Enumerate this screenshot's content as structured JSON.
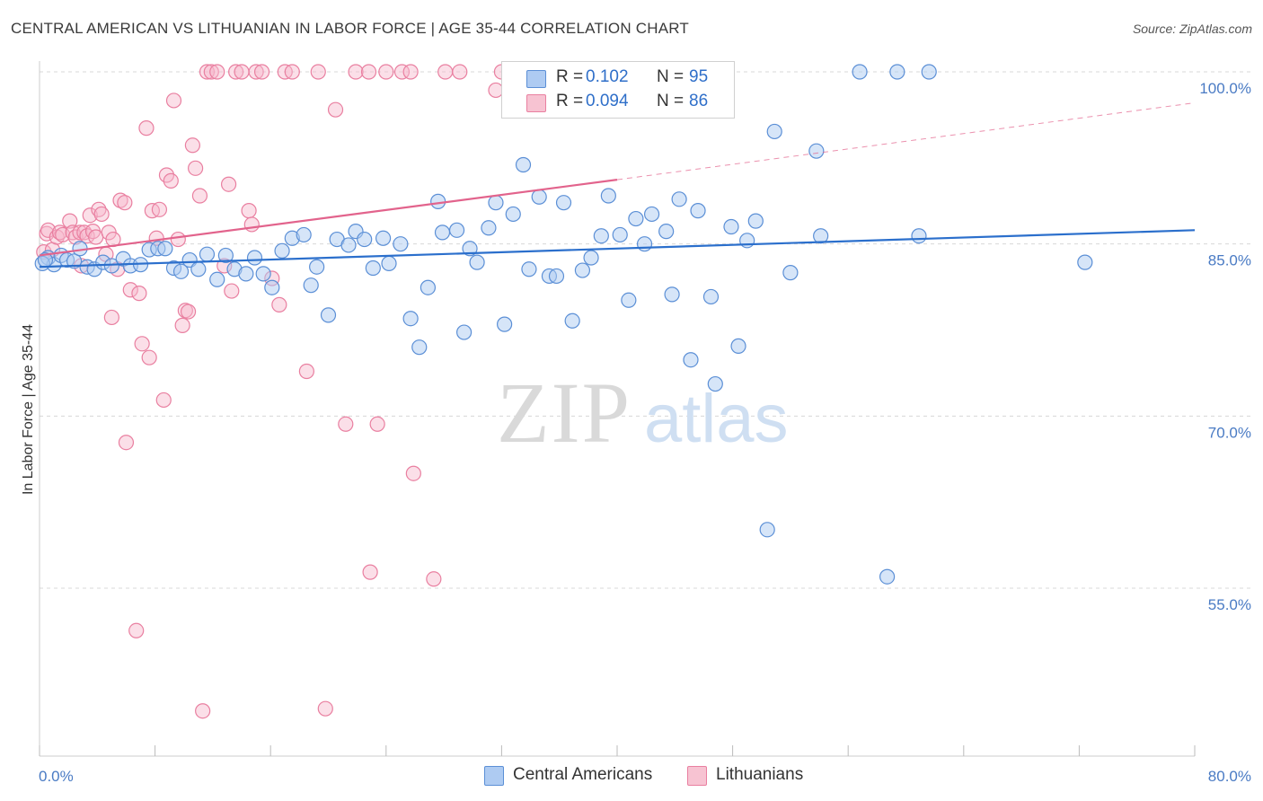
{
  "header": {
    "title": "CENTRAL AMERICAN VS LITHUANIAN IN LABOR FORCE | AGE 35-44 CORRELATION CHART",
    "source": "Source: ZipAtlas.com"
  },
  "watermark": {
    "zip": "ZIP",
    "atlas": "atlas"
  },
  "legend": {
    "rows": [
      {
        "r_label": "R =",
        "r_value": "0.102",
        "n_label": "N =",
        "n_value": "95"
      },
      {
        "r_label": "R =",
        "r_value": "0.094",
        "n_label": "N =",
        "n_value": "86"
      }
    ]
  },
  "bottom_legend": {
    "central": "Central Americans",
    "lithuanian": "Lithuanians"
  },
  "colors": {
    "blue_fill": "#aecbf2",
    "blue_stroke": "#5b8fd6",
    "blue_line": "#2b6fcc",
    "pink_fill": "#f7b8cb",
    "pink_stroke": "#e97fa0",
    "pink_line": "#e2638c",
    "tick_text": "#4a7bc4",
    "grid": "#d8d8d8"
  },
  "chart_data": {
    "type": "scatter",
    "ylabel": "In Labor Force | Age 35-44",
    "x_tick_labels": [
      "0.0%",
      "80.0%"
    ],
    "y_tick_labels": [
      "100.0%",
      "85.0%",
      "70.0%",
      "55.0%"
    ],
    "y_ticks": [
      100,
      85,
      70,
      55
    ],
    "xlim": [
      0,
      80
    ],
    "ylim": [
      40,
      101
    ],
    "grid": true,
    "series": [
      {
        "name": "Central Americans",
        "trend": {
          "x0": 0,
          "y0": 83.0,
          "x1": 80,
          "y1": 86.2
        },
        "points": [
          [
            0.6,
            83.8
          ],
          [
            1.0,
            83.2
          ],
          [
            1.5,
            84.0
          ],
          [
            1.9,
            83.6
          ],
          [
            2.4,
            83.5
          ],
          [
            2.8,
            84.6
          ],
          [
            3.3,
            83.0
          ],
          [
            3.8,
            82.8
          ],
          [
            4.4,
            83.4
          ],
          [
            5.0,
            83.1
          ],
          [
            5.8,
            83.7
          ],
          [
            6.3,
            83.1
          ],
          [
            7.0,
            83.2
          ],
          [
            7.6,
            84.5
          ],
          [
            8.2,
            84.6
          ],
          [
            8.7,
            84.6
          ],
          [
            9.3,
            82.9
          ],
          [
            9.8,
            82.6
          ],
          [
            10.4,
            83.6
          ],
          [
            11.0,
            82.8
          ],
          [
            11.6,
            84.1
          ],
          [
            12.3,
            81.9
          ],
          [
            12.9,
            84.0
          ],
          [
            13.5,
            82.8
          ],
          [
            14.3,
            82.4
          ],
          [
            14.9,
            83.8
          ],
          [
            15.5,
            82.4
          ],
          [
            16.1,
            81.2
          ],
          [
            16.8,
            84.4
          ],
          [
            17.5,
            85.5
          ],
          [
            18.3,
            85.8
          ],
          [
            18.8,
            81.4
          ],
          [
            19.2,
            83.0
          ],
          [
            20.0,
            78.8
          ],
          [
            20.6,
            85.4
          ],
          [
            21.4,
            84.9
          ],
          [
            21.9,
            86.1
          ],
          [
            22.5,
            85.4
          ],
          [
            23.1,
            82.9
          ],
          [
            23.8,
            85.5
          ],
          [
            24.2,
            83.3
          ],
          [
            25.0,
            85.0
          ],
          [
            25.7,
            78.5
          ],
          [
            26.3,
            76.0
          ],
          [
            26.9,
            81.2
          ],
          [
            27.6,
            88.7
          ],
          [
            27.9,
            86.0
          ],
          [
            28.9,
            86.2
          ],
          [
            29.4,
            77.3
          ],
          [
            29.8,
            84.6
          ],
          [
            30.3,
            83.4
          ],
          [
            31.1,
            86.4
          ],
          [
            31.6,
            88.6
          ],
          [
            32.2,
            78.0
          ],
          [
            32.8,
            87.6
          ],
          [
            33.5,
            91.9
          ],
          [
            33.9,
            82.8
          ],
          [
            34.6,
            89.1
          ],
          [
            35.3,
            82.2
          ],
          [
            35.8,
            82.2
          ],
          [
            36.3,
            88.6
          ],
          [
            36.9,
            78.3
          ],
          [
            37.6,
            82.7
          ],
          [
            38.2,
            83.8
          ],
          [
            38.9,
            85.7
          ],
          [
            39.4,
            89.2
          ],
          [
            40.2,
            85.8
          ],
          [
            40.8,
            80.1
          ],
          [
            41.3,
            87.2
          ],
          [
            41.9,
            85.0
          ],
          [
            42.4,
            87.6
          ],
          [
            43.4,
            86.1
          ],
          [
            43.8,
            80.6
          ],
          [
            44.3,
            88.9
          ],
          [
            45.1,
            74.9
          ],
          [
            45.6,
            87.9
          ],
          [
            46.5,
            80.4
          ],
          [
            46.8,
            72.8
          ],
          [
            47.9,
            86.5
          ],
          [
            48.4,
            76.1
          ],
          [
            49.0,
            85.3
          ],
          [
            49.6,
            87.0
          ],
          [
            50.4,
            60.1
          ],
          [
            50.9,
            94.8
          ],
          [
            52.0,
            82.5
          ],
          [
            53.8,
            93.1
          ],
          [
            54.1,
            85.7
          ],
          [
            56.8,
            100.0
          ],
          [
            58.7,
            56.0
          ],
          [
            59.4,
            100.0
          ],
          [
            60.9,
            85.7
          ],
          [
            61.6,
            100.0
          ],
          [
            72.4,
            83.4
          ],
          [
            0.2,
            83.3
          ],
          [
            0.4,
            83.6
          ]
        ]
      },
      {
        "name": "Lithuanians",
        "trend": {
          "x0": 0,
          "y0": 84.0,
          "x1": 40,
          "y1": 90.6,
          "dash_x1": 80,
          "dash_y1": 97.3
        },
        "points": [
          [
            0.3,
            84.3
          ],
          [
            0.5,
            85.9
          ],
          [
            0.6,
            86.2
          ],
          [
            0.9,
            84.5
          ],
          [
            1.2,
            85.6
          ],
          [
            1.4,
            86.0
          ],
          [
            1.6,
            85.8
          ],
          [
            2.1,
            87.0
          ],
          [
            2.3,
            86.0
          ],
          [
            2.5,
            85.6
          ],
          [
            2.8,
            86.0
          ],
          [
            3.1,
            86.0
          ],
          [
            3.3,
            85.7
          ],
          [
            3.5,
            87.5
          ],
          [
            3.7,
            86.1
          ],
          [
            3.9,
            85.6
          ],
          [
            4.1,
            88.0
          ],
          [
            4.3,
            87.6
          ],
          [
            4.6,
            84.1
          ],
          [
            4.8,
            86.0
          ],
          [
            5.0,
            78.6
          ],
          [
            5.1,
            85.4
          ],
          [
            5.4,
            82.8
          ],
          [
            5.6,
            88.8
          ],
          [
            5.9,
            88.6
          ],
          [
            6.0,
            67.7
          ],
          [
            6.3,
            81.0
          ],
          [
            6.7,
            51.3
          ],
          [
            6.9,
            80.7
          ],
          [
            7.1,
            76.3
          ],
          [
            7.4,
            95.1
          ],
          [
            7.6,
            75.1
          ],
          [
            7.8,
            87.9
          ],
          [
            8.1,
            85.5
          ],
          [
            8.3,
            88.0
          ],
          [
            8.6,
            71.4
          ],
          [
            8.8,
            91.0
          ],
          [
            9.1,
            90.5
          ],
          [
            9.3,
            97.5
          ],
          [
            9.6,
            85.4
          ],
          [
            9.9,
            77.9
          ],
          [
            10.1,
            79.2
          ],
          [
            10.3,
            79.1
          ],
          [
            10.6,
            93.6
          ],
          [
            10.8,
            91.6
          ],
          [
            11.1,
            89.2
          ],
          [
            11.3,
            44.3
          ],
          [
            11.6,
            100.0
          ],
          [
            11.9,
            100.0
          ],
          [
            12.3,
            100.0
          ],
          [
            12.8,
            83.1
          ],
          [
            13.1,
            90.2
          ],
          [
            13.3,
            80.9
          ],
          [
            13.6,
            100.0
          ],
          [
            14.0,
            100.0
          ],
          [
            14.5,
            87.9
          ],
          [
            14.7,
            86.7
          ],
          [
            15.0,
            100.0
          ],
          [
            15.4,
            100.0
          ],
          [
            16.1,
            82.0
          ],
          [
            16.6,
            79.7
          ],
          [
            17.0,
            100.0
          ],
          [
            17.5,
            100.0
          ],
          [
            18.5,
            73.9
          ],
          [
            19.3,
            100.0
          ],
          [
            19.8,
            44.5
          ],
          [
            20.5,
            96.7
          ],
          [
            21.2,
            69.3
          ],
          [
            21.9,
            100.0
          ],
          [
            22.8,
            100.0
          ],
          [
            22.9,
            56.4
          ],
          [
            23.4,
            69.3
          ],
          [
            24.0,
            100.0
          ],
          [
            25.1,
            100.0
          ],
          [
            25.9,
            65.0
          ],
          [
            25.7,
            100.0
          ],
          [
            27.3,
            55.8
          ],
          [
            28.1,
            100.0
          ],
          [
            29.1,
            100.0
          ],
          [
            31.6,
            98.4
          ],
          [
            32.0,
            100.0
          ],
          [
            34.6,
            100.0
          ],
          [
            35.4,
            100.0
          ],
          [
            36.0,
            100.0
          ],
          [
            37.2,
            100.0
          ],
          [
            2.9,
            83.1
          ]
        ]
      }
    ]
  }
}
